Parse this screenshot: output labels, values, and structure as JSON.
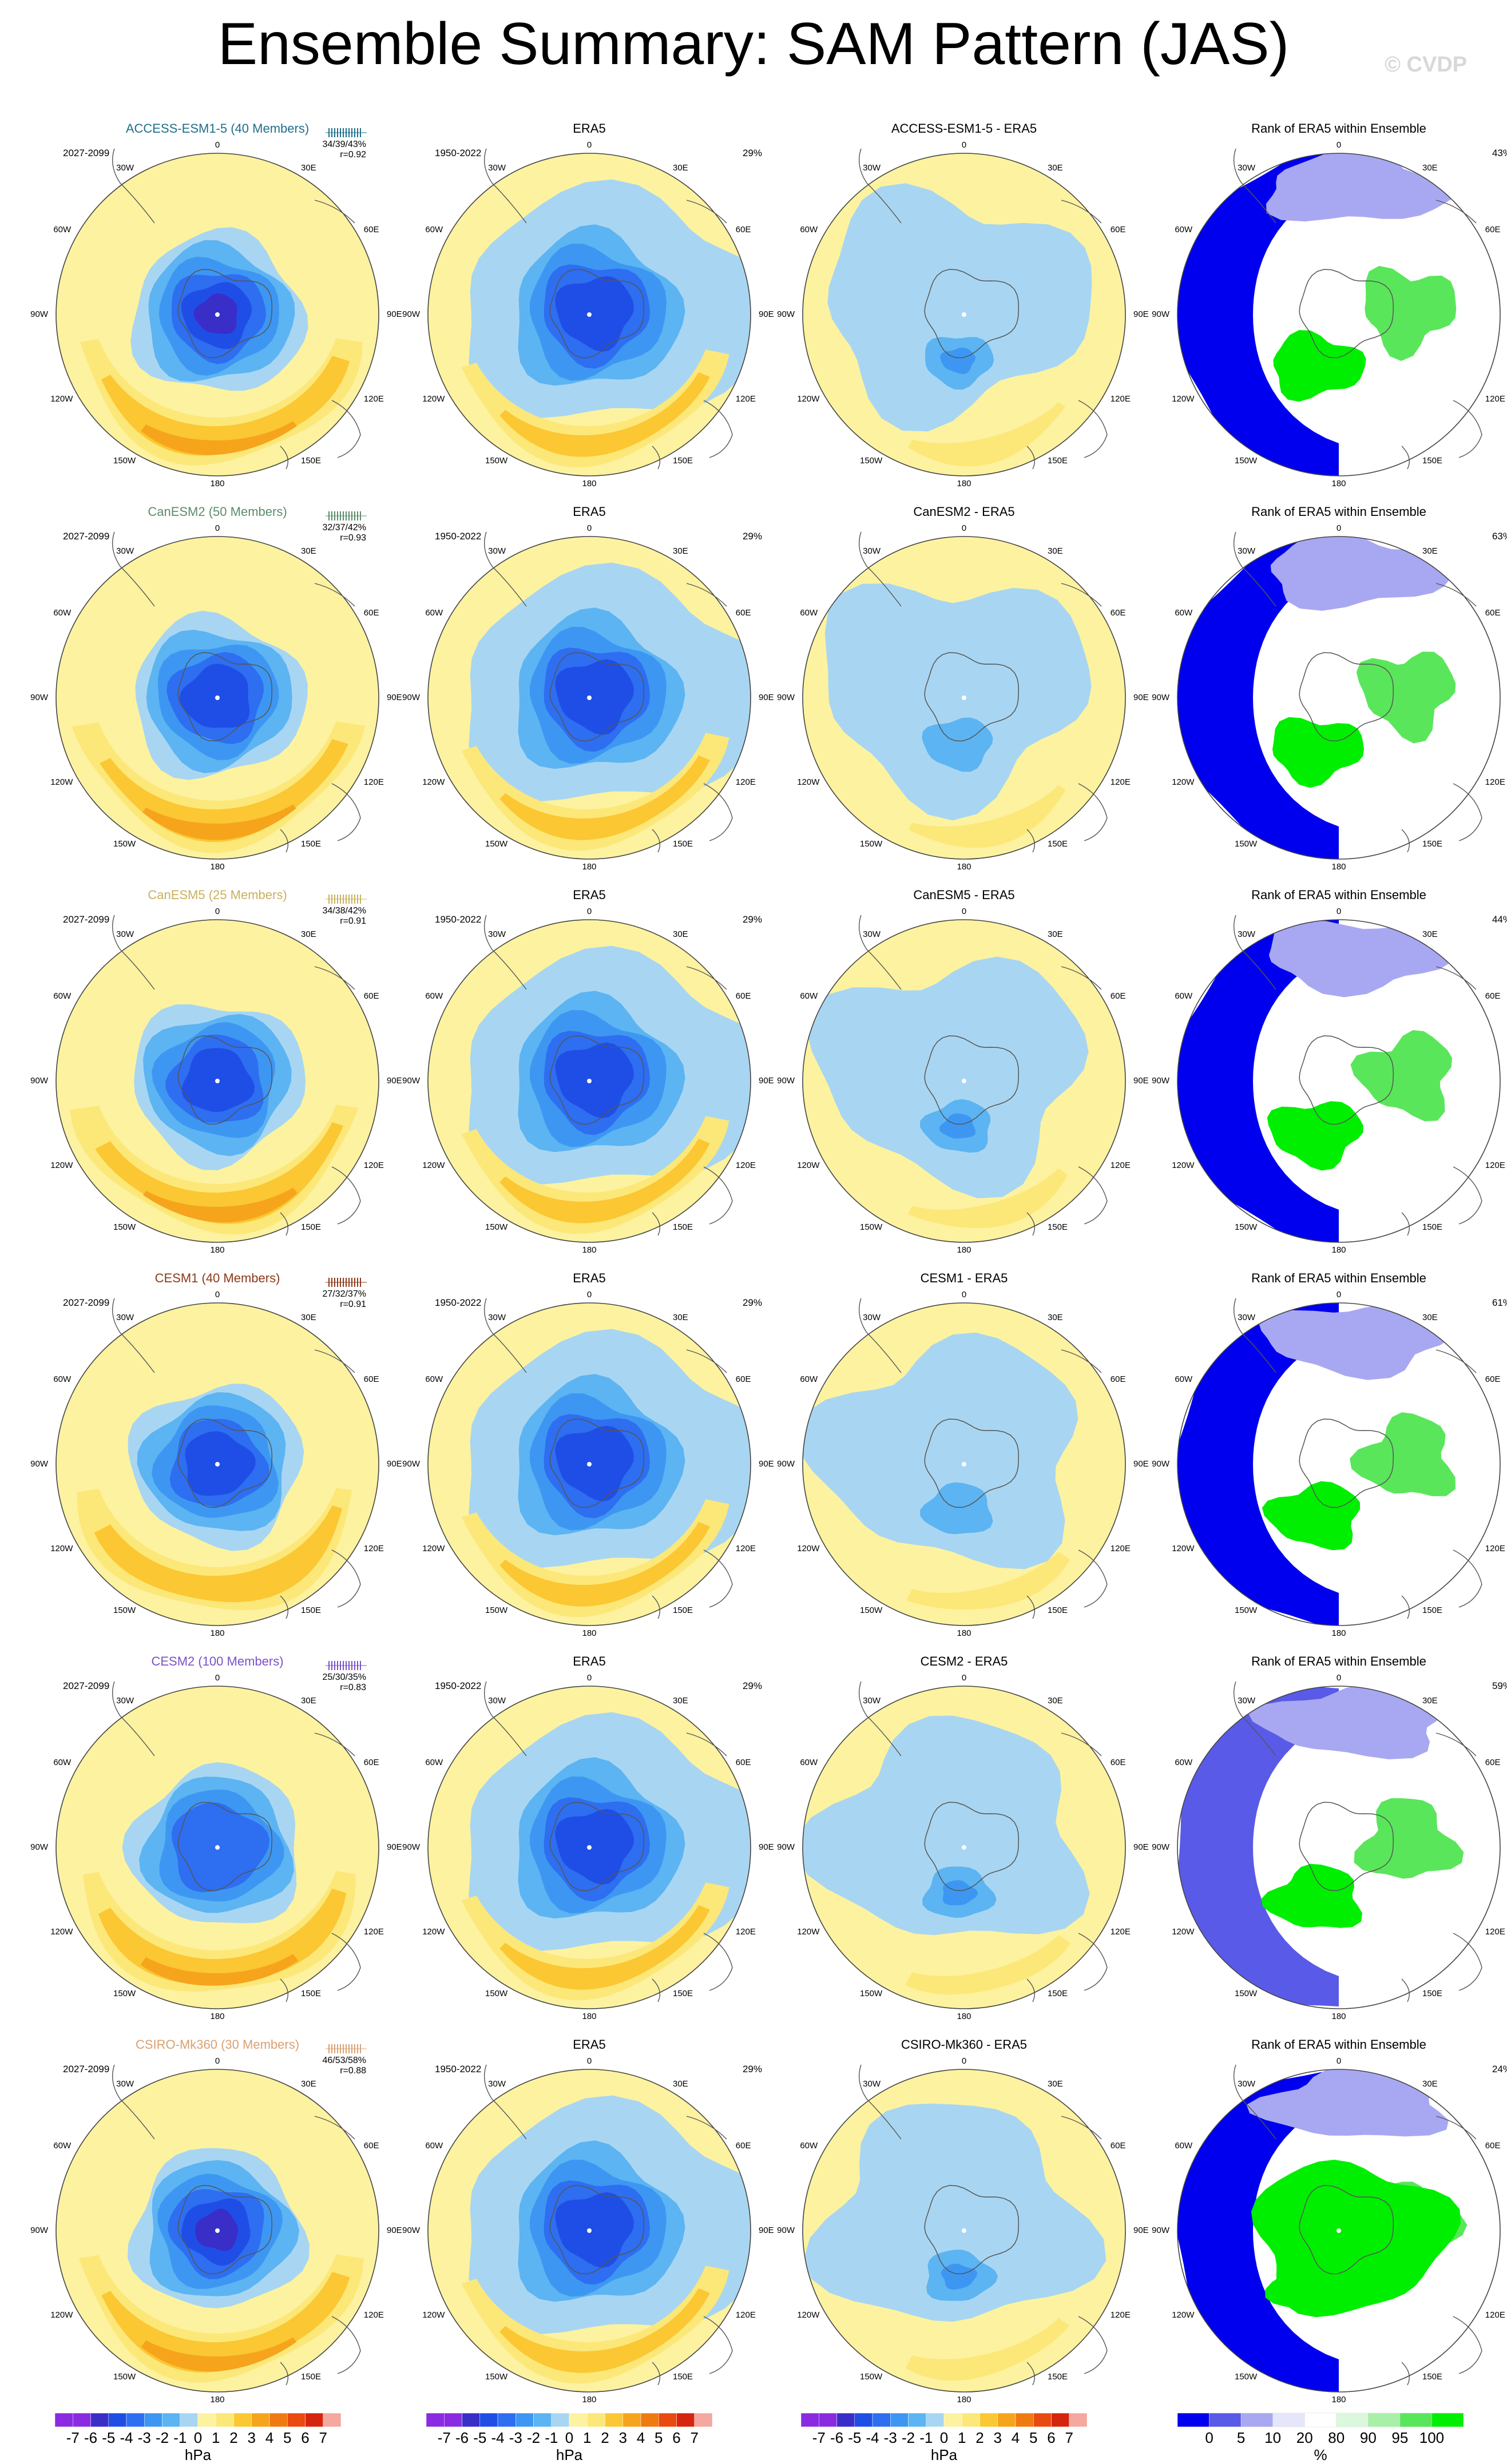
{
  "title": "Ensemble Summary: SAM Pattern (JAS)",
  "copyright": "© CVDP",
  "colors": {
    "fill": {
      "-7": "#8a2be2",
      "-6": "#3a2ec8",
      "-5": "#1f4ee6",
      "-4": "#2e6ef0",
      "-3": "#3d97f2",
      "-2": "#5cb4f2",
      "-1": "#a8d6f2",
      "0": "#fdf2a0",
      "1": "#fce779",
      "2": "#fbc732",
      "3": "#f6a41c",
      "4": "#f07a12",
      "5": "#e84a10",
      "6": "#d6250e",
      "7": "#f4a8a0"
    },
    "rank": {
      "0": "#0000ee",
      "5": "#5a5ae8",
      "10": "#a8a8f2",
      "20": "#e6e6fa",
      "80": "#ffffff",
      "90": "#dcf8dc",
      "95": "#a8f0a8",
      "100": "#5ae65a",
      "top": "#00ee00"
    },
    "ocean_line": "#888888",
    "coast": "#555555"
  },
  "labels": {
    "lon": [
      "0",
      "30E",
      "60E",
      "90E",
      "120E",
      "150E",
      "180",
      "150W",
      "120W",
      "90W",
      "60W",
      "30W"
    ],
    "era5": "ERA5",
    "rank_title": "Rank of ERA5 within Ensemble",
    "model_period": "2027-2099",
    "obs_period": "1950-2022",
    "obs_stat": "29%"
  },
  "colorbar": {
    "pattern_labels": [
      "-7",
      "-6",
      "-5",
      "-4",
      "-3",
      "-2",
      "-1",
      "0",
      "1",
      "2",
      "3",
      "4",
      "5",
      "6",
      "7"
    ],
    "pattern_unit": "hPa",
    "rank_labels": [
      "0",
      "5",
      "10",
      "20",
      "80",
      "90",
      "95",
      "100"
    ],
    "rank_unit": "%"
  },
  "rows": [
    {
      "model": "ACCESS-ESM1-5 (40 Members)",
      "short": "ACCESS-ESM1-5",
      "diff_title": "ACCESS-ESM1-5 - ERA5",
      "color": "#1f6f8b",
      "pct": "34/39/43%",
      "r": "r=0.92",
      "rank_stat": "43%",
      "model_field": {
        "low": -6,
        "high": 4
      },
      "diff_field": {
        "low": -3,
        "high": 2
      },
      "rank_type": "a"
    },
    {
      "model": "CanESM2 (50 Members)",
      "short": "CanESM2",
      "diff_title": "CanESM2 - ERA5",
      "color": "#5b8c6b",
      "pct": "32/37/42%",
      "r": "r=0.93",
      "rank_stat": "63%",
      "model_field": {
        "low": -5,
        "high": 4
      },
      "diff_field": {
        "low": -2,
        "high": 2
      },
      "rank_type": "b"
    },
    {
      "model": "CanESM5 (25 Members)",
      "short": "CanESM5",
      "diff_title": "CanESM5 - ERA5",
      "color": "#c9b15c",
      "pct": "34/38/42%",
      "r": "r=0.91",
      "rank_stat": "44%",
      "model_field": {
        "low": -5,
        "high": 3
      },
      "diff_field": {
        "low": -3,
        "high": 2
      },
      "rank_type": "c"
    },
    {
      "model": "CESM1 (40 Members)",
      "short": "CESM1",
      "diff_title": "CESM1 - ERA5",
      "color": "#8b3a1a",
      "pct": "27/32/37%",
      "r": "r=0.91",
      "rank_stat": "61%",
      "model_field": {
        "low": -5,
        "high": 2
      },
      "diff_field": {
        "low": -2,
        "high": 1
      },
      "rank_type": "d"
    },
    {
      "model": "CESM2 (100 Members)",
      "short": "CESM2",
      "diff_title": "CESM2 - ERA5",
      "color": "#7b52c8",
      "pct": "25/30/35%",
      "r": "r=0.83",
      "rank_stat": "59%",
      "model_field": {
        "low": -4,
        "high": 3
      },
      "diff_field": {
        "low": -3,
        "high": 2
      },
      "rank_type": "e"
    },
    {
      "model": "CSIRO-Mk360 (30 Members)",
      "short": "CSIRO-Mk360",
      "diff_title": "CSIRO-Mk360 - ERA5",
      "color": "#d9a070",
      "pct": "46/53/58%",
      "r": "r=0.88",
      "rank_stat": "24%",
      "model_field": {
        "low": -6,
        "high": 4
      },
      "diff_field": {
        "low": -3,
        "high": 2
      },
      "rank_type": "f"
    }
  ]
}
